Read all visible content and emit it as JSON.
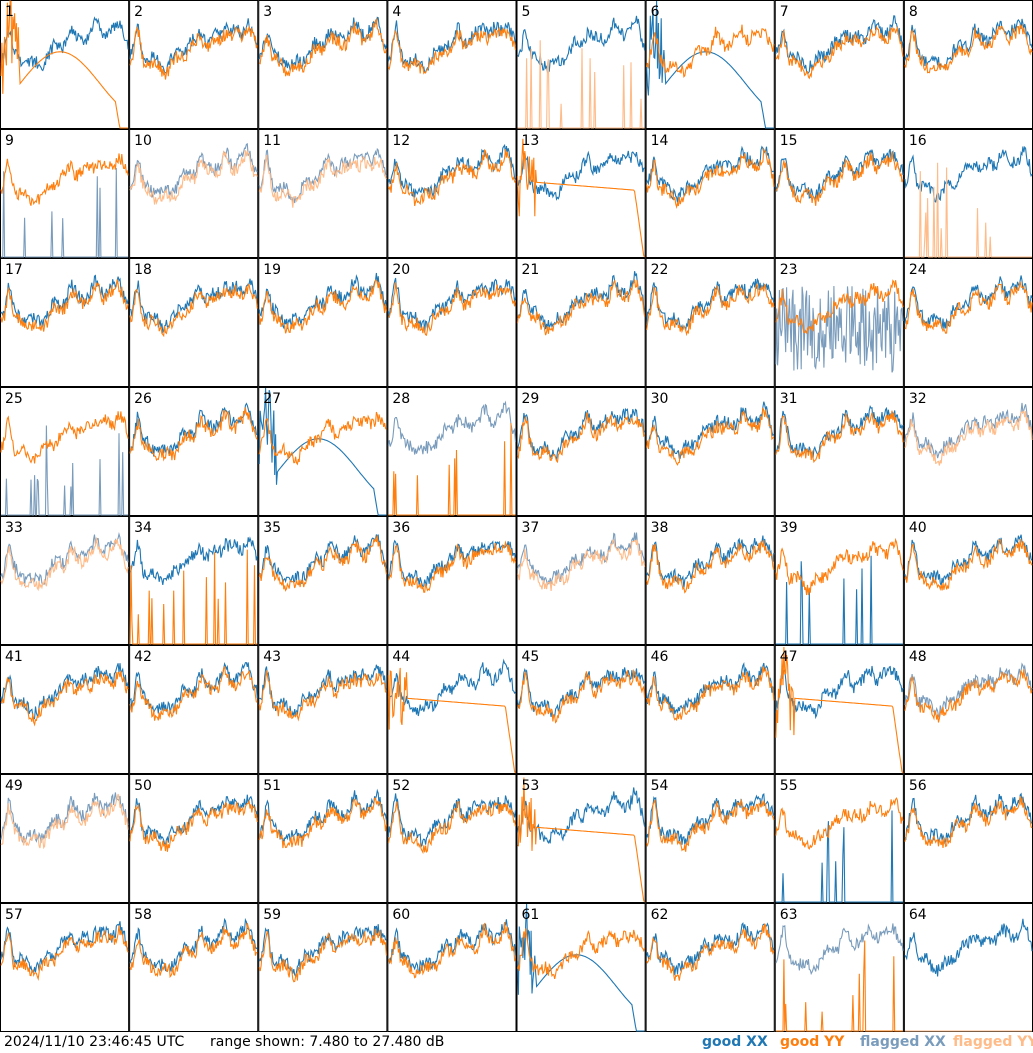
{
  "footer": {
    "timestamp": "2024/11/10 23:46:45 UTC",
    "range_text": "range shown: 7.480 to 27.480 dB"
  },
  "legend": [
    {
      "label": "good XX",
      "color": "#1f77b4"
    },
    {
      "label": "good YY",
      "color": "#ff7f0e"
    },
    {
      "label": "flagged XX",
      "color": "#7a9cbc"
    },
    {
      "label": "flagged YY",
      "color": "#ffbb88"
    }
  ],
  "chart_data": {
    "type": "line",
    "layout": "8x8 small multiples",
    "ylim_db": [
      7.48,
      27.48
    ],
    "panels": [
      {
        "id": "1",
        "xx": "good",
        "yy": "good",
        "note": "YY dips low"
      },
      {
        "id": "2",
        "xx": "good",
        "yy": "good"
      },
      {
        "id": "3",
        "xx": "good",
        "yy": "good"
      },
      {
        "id": "4",
        "xx": "good",
        "yy": "good"
      },
      {
        "id": "5",
        "xx": "good",
        "yy": "flagged",
        "note": "YY spikes"
      },
      {
        "id": "6",
        "xx": "good",
        "yy": "good",
        "note": "XX dips low"
      },
      {
        "id": "7",
        "xx": "good",
        "yy": "good"
      },
      {
        "id": "8",
        "xx": "good",
        "yy": "good"
      },
      {
        "id": "9",
        "xx": "flagged",
        "yy": "good",
        "note": "XX spikes"
      },
      {
        "id": "10",
        "xx": "flagged",
        "yy": "flagged"
      },
      {
        "id": "11",
        "xx": "flagged",
        "yy": "flagged"
      },
      {
        "id": "12",
        "xx": "good",
        "yy": "good"
      },
      {
        "id": "13",
        "xx": "good",
        "yy": "good",
        "note": "YY smooth decay"
      },
      {
        "id": "14",
        "xx": "good",
        "yy": "good"
      },
      {
        "id": "15",
        "xx": "good",
        "yy": "good"
      },
      {
        "id": "16",
        "xx": "good",
        "yy": "flagged",
        "note": "YY spikes"
      },
      {
        "id": "17",
        "xx": "good",
        "yy": "good"
      },
      {
        "id": "18",
        "xx": "good",
        "yy": "good"
      },
      {
        "id": "19",
        "xx": "good",
        "yy": "good"
      },
      {
        "id": "20",
        "xx": "good",
        "yy": "good"
      },
      {
        "id": "21",
        "xx": "good",
        "yy": "good"
      },
      {
        "id": "22",
        "xx": "good",
        "yy": "good"
      },
      {
        "id": "23",
        "xx": "flagged",
        "yy": "good",
        "note": "XX noisy"
      },
      {
        "id": "24",
        "xx": "good",
        "yy": "good"
      },
      {
        "id": "25",
        "xx": "flagged",
        "yy": "good",
        "note": "XX spikes"
      },
      {
        "id": "26",
        "xx": "good",
        "yy": "good"
      },
      {
        "id": "27",
        "xx": "good",
        "yy": "good",
        "note": "XX dips low"
      },
      {
        "id": "28",
        "xx": "flagged",
        "yy": "good",
        "note": "YY spikes"
      },
      {
        "id": "29",
        "xx": "good",
        "yy": "good"
      },
      {
        "id": "30",
        "xx": "good",
        "yy": "good"
      },
      {
        "id": "31",
        "xx": "good",
        "yy": "good"
      },
      {
        "id": "32",
        "xx": "flagged",
        "yy": "flagged"
      },
      {
        "id": "33",
        "xx": "flagged",
        "yy": "flagged"
      },
      {
        "id": "34",
        "xx": "good",
        "yy": "good",
        "note": "YY spikes"
      },
      {
        "id": "35",
        "xx": "good",
        "yy": "good"
      },
      {
        "id": "36",
        "xx": "good",
        "yy": "good"
      },
      {
        "id": "37",
        "xx": "flagged",
        "yy": "flagged"
      },
      {
        "id": "38",
        "xx": "good",
        "yy": "good"
      },
      {
        "id": "39",
        "xx": "good",
        "yy": "good",
        "note": "XX spikes"
      },
      {
        "id": "40",
        "xx": "good",
        "yy": "good"
      },
      {
        "id": "41",
        "xx": "good",
        "yy": "good"
      },
      {
        "id": "42",
        "xx": "good",
        "yy": "good"
      },
      {
        "id": "43",
        "xx": "good",
        "yy": "good"
      },
      {
        "id": "44",
        "xx": "good",
        "yy": "good",
        "note": "YY smooth decay"
      },
      {
        "id": "45",
        "xx": "good",
        "yy": "good"
      },
      {
        "id": "46",
        "xx": "good",
        "yy": "good"
      },
      {
        "id": "47",
        "xx": "good",
        "yy": "good",
        "note": "YY smooth decay"
      },
      {
        "id": "48",
        "xx": "flagged",
        "yy": "good"
      },
      {
        "id": "49",
        "xx": "flagged",
        "yy": "flagged"
      },
      {
        "id": "50",
        "xx": "good",
        "yy": "good"
      },
      {
        "id": "51",
        "xx": "good",
        "yy": "good"
      },
      {
        "id": "52",
        "xx": "good",
        "yy": "good"
      },
      {
        "id": "53",
        "xx": "good",
        "yy": "good",
        "note": "YY smooth decay"
      },
      {
        "id": "54",
        "xx": "good",
        "yy": "good"
      },
      {
        "id": "55",
        "xx": "good",
        "yy": "good",
        "note": "XX spikes"
      },
      {
        "id": "56",
        "xx": "good",
        "yy": "good"
      },
      {
        "id": "57",
        "xx": "good",
        "yy": "good"
      },
      {
        "id": "58",
        "xx": "good",
        "yy": "good"
      },
      {
        "id": "59",
        "xx": "good",
        "yy": "good"
      },
      {
        "id": "60",
        "xx": "good",
        "yy": "good"
      },
      {
        "id": "61",
        "xx": "good",
        "yy": "good",
        "note": "XX dips low"
      },
      {
        "id": "62",
        "xx": "good",
        "yy": "good"
      },
      {
        "id": "63",
        "xx": "flagged",
        "yy": "good",
        "note": "YY spikes"
      },
      {
        "id": "64",
        "xx": "good",
        "yy": "flagged",
        "note": "YY flat"
      }
    ]
  }
}
